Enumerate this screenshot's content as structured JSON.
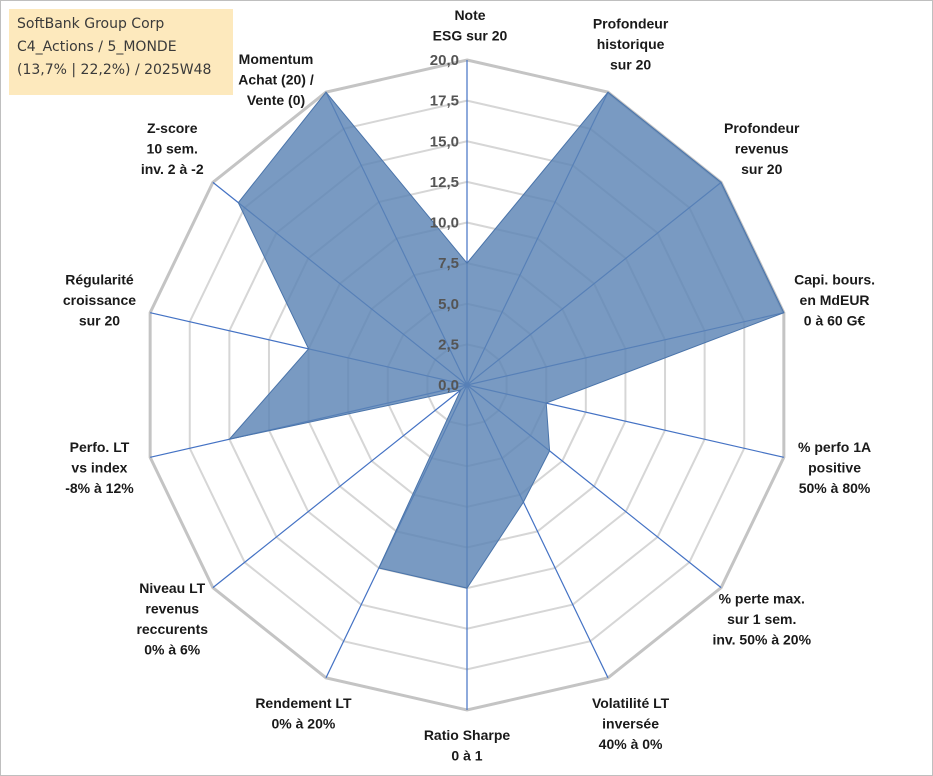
{
  "info": {
    "line1": "SoftBank Group Corp",
    "line2": "C4_Actions / 5_MONDE",
    "line3": "(13,7% | 22,2%) / 2025W48"
  },
  "chart_data": {
    "type": "radar",
    "title": "",
    "rlim": [
      0,
      20
    ],
    "ticks": [
      "0,0",
      "2,5",
      "5,0",
      "7,5",
      "10,0",
      "12,5",
      "15,0",
      "17,5",
      "20,0"
    ],
    "axes": [
      [
        "Note",
        "ESG sur 20"
      ],
      [
        "Profondeur",
        "historique",
        "sur 20"
      ],
      [
        "Profondeur",
        "revenus",
        "sur 20"
      ],
      [
        "Capi. bours.",
        "en MdEUR",
        "0 à 60 G€"
      ],
      [
        "% perfo 1A",
        "positive",
        "50% à 80%"
      ],
      [
        "% perte max.",
        "sur 1 sem.",
        "inv. 50% à 20%"
      ],
      [
        "Volatilité LT",
        "inversée",
        "40% à 0%"
      ],
      [
        "Ratio Sharpe",
        "0 à 1"
      ],
      [
        "Rendement LT",
        "0% à 20%"
      ],
      [
        "Niveau LT",
        "revenus",
        "reccurents",
        "0% à 6%"
      ],
      [
        "Perfo. LT",
        "vs index",
        "-8% à 12%"
      ],
      [
        "Régularité",
        "croissance",
        "sur 20"
      ],
      [
        "Z-score",
        "10 sem.",
        "inv. 2 à -2"
      ],
      [
        "Momentum",
        "Achat (20) /",
        "Vente (0)"
      ]
    ],
    "series": [
      {
        "name": "SoftBank Group Corp",
        "values": [
          7.5,
          20,
          20,
          20,
          5,
          6.5,
          8,
          12.5,
          12.5,
          0.5,
          15,
          10,
          18,
          20
        ],
        "color": "#5b84b4"
      }
    ]
  }
}
